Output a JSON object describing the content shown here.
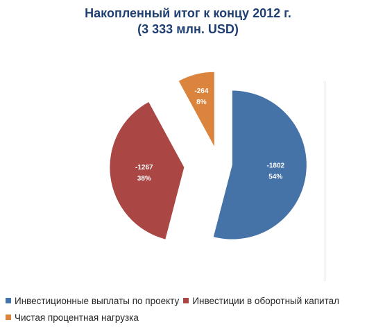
{
  "chart_data": {
    "type": "pie",
    "title_line1": "Накопленный итог к концу 2012 г.",
    "title_line2": "(3 333 млн. USD)",
    "categories": [
      "Инвестиционные выплаты по проекту",
      "Инвестиции в оборотный капитал",
      "Чистая процентная нагрузка"
    ],
    "values": [
      -1802,
      -1267,
      -264
    ],
    "percent_labels": [
      "54%",
      "38%",
      "8%"
    ],
    "value_labels": [
      "-1802",
      "-1267",
      "-264"
    ],
    "colors": [
      "#4572a7",
      "#aa4643",
      "#db843d"
    ],
    "exploded": true,
    "legend_position": "bottom"
  }
}
